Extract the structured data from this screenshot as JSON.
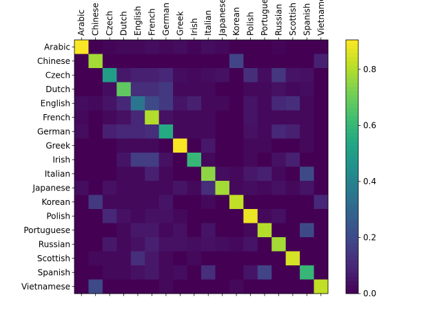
{
  "chart_data": {
    "type": "heatmap",
    "categories": [
      "Arabic",
      "Chinese",
      "Czech",
      "Dutch",
      "English",
      "French",
      "German",
      "Greek",
      "Irish",
      "Italian",
      "Japanese",
      "Korean",
      "Polish",
      "Portuguese",
      "Russian",
      "Scottish",
      "Spanish",
      "Vietnamese"
    ],
    "values": [
      [
        0.9,
        0,
        0.01,
        0.02,
        0.02,
        0.03,
        0.02,
        0.03,
        0.01,
        0.03,
        0.02,
        0,
        0,
        0,
        0.01,
        0,
        0,
        0
      ],
      [
        0,
        0.78,
        0,
        0,
        0,
        0,
        0,
        0,
        0,
        0,
        0,
        0.18,
        0,
        0,
        0,
        0,
        0,
        0.08
      ],
      [
        0,
        0,
        0.5,
        0.06,
        0.08,
        0.08,
        0.1,
        0.03,
        0.02,
        0.03,
        0.04,
        0,
        0.12,
        0.03,
        0.14,
        0.05,
        0.04,
        0
      ],
      [
        0,
        0,
        0.03,
        0.68,
        0.12,
        0.12,
        0.15,
        0.02,
        0.02,
        0.02,
        0,
        0,
        0.02,
        0.02,
        0.04,
        0.02,
        0.03,
        0
      ],
      [
        0.03,
        0.02,
        0.05,
        0.1,
        0.35,
        0.2,
        0.15,
        0.05,
        0.08,
        0.02,
        0.02,
        0,
        0.05,
        0.02,
        0.1,
        0.12,
        0.02,
        0
      ],
      [
        0.02,
        0,
        0.02,
        0.04,
        0.1,
        0.8,
        0.04,
        0.02,
        0.02,
        0.02,
        0,
        0,
        0.05,
        0.02,
        0.02,
        0.02,
        0.02,
        0
      ],
      [
        0.03,
        0,
        0.08,
        0.1,
        0.1,
        0.12,
        0.55,
        0.02,
        0.02,
        0.02,
        0,
        0,
        0.04,
        0.02,
        0.1,
        0.08,
        0.02,
        0
      ],
      [
        0,
        0,
        0,
        0.02,
        0.02,
        0.02,
        0,
        0.9,
        0,
        0.06,
        0,
        0,
        0.02,
        0.02,
        0,
        0,
        0.02,
        0
      ],
      [
        0,
        0,
        0,
        0.05,
        0.16,
        0.16,
        0.04,
        0,
        0.6,
        0.02,
        0,
        0,
        0.02,
        0,
        0.04,
        0.08,
        0,
        0
      ],
      [
        0,
        0,
        0,
        0.02,
        0.02,
        0.08,
        0.02,
        0,
        0,
        0.75,
        0.03,
        0.02,
        0.06,
        0.08,
        0.02,
        0,
        0.2,
        0
      ],
      [
        0.03,
        0,
        0.04,
        0.02,
        0.02,
        0.02,
        0.02,
        0.05,
        0.02,
        0.12,
        0.78,
        0.02,
        0.03,
        0.02,
        0.04,
        0.02,
        0.05,
        0
      ],
      [
        0,
        0.15,
        0.02,
        0.02,
        0.02,
        0.02,
        0.05,
        0,
        0,
        0.02,
        0,
        0.82,
        0,
        0,
        0,
        0,
        0,
        0.1
      ],
      [
        0,
        0,
        0.1,
        0.04,
        0.02,
        0.04,
        0.04,
        0.02,
        0,
        0,
        0,
        0,
        0.88,
        0.02,
        0.04,
        0,
        0,
        0
      ],
      [
        0,
        0,
        0,
        0.02,
        0.06,
        0.06,
        0.02,
        0.04,
        0,
        0.05,
        0,
        0,
        0.02,
        0.8,
        0,
        0,
        0.2,
        0
      ],
      [
        0,
        0,
        0.06,
        0.02,
        0.04,
        0.08,
        0.04,
        0.04,
        0.03,
        0.04,
        0.03,
        0.02,
        0.05,
        0,
        0.78,
        0,
        0,
        0
      ],
      [
        0,
        0.02,
        0.02,
        0.02,
        0.12,
        0.06,
        0.02,
        0,
        0.02,
        0,
        0,
        0,
        0,
        0,
        0,
        0.85,
        0,
        0
      ],
      [
        0,
        0,
        0.02,
        0.02,
        0.04,
        0.06,
        0.02,
        0.03,
        0,
        0.12,
        0,
        0,
        0.05,
        0.18,
        0,
        0,
        0.6,
        0
      ],
      [
        0,
        0.2,
        0,
        0,
        0,
        0,
        0.02,
        0,
        0,
        0,
        0,
        0.02,
        0,
        0,
        0,
        0,
        0,
        0.82
      ]
    ],
    "colormap": "viridis",
    "clim": [
      0,
      0.905
    ],
    "cticks": [
      {
        "value": 0,
        "label": "0.0"
      },
      {
        "value": 0.2,
        "label": "0.2"
      },
      {
        "value": 0.4,
        "label": "0.4"
      },
      {
        "value": 0.6,
        "label": "0.6"
      },
      {
        "value": 0.8,
        "label": "0.8"
      }
    ]
  }
}
